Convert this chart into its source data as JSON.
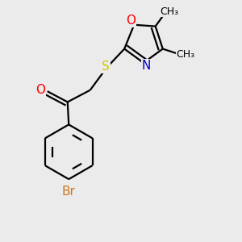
{
  "bg_color": "#ebebeb",
  "line_color": "#000000",
  "o_color": "#ff0000",
  "n_color": "#0000cd",
  "s_color": "#cccc00",
  "br_color": "#cc7722",
  "bond_width": 1.6,
  "font_size": 11,
  "small_font_size": 9,
  "figsize": [
    3.0,
    3.0
  ],
  "dpi": 100,
  "xlim": [
    0.0,
    1.0
  ],
  "ylim": [
    0.0,
    1.0
  ]
}
